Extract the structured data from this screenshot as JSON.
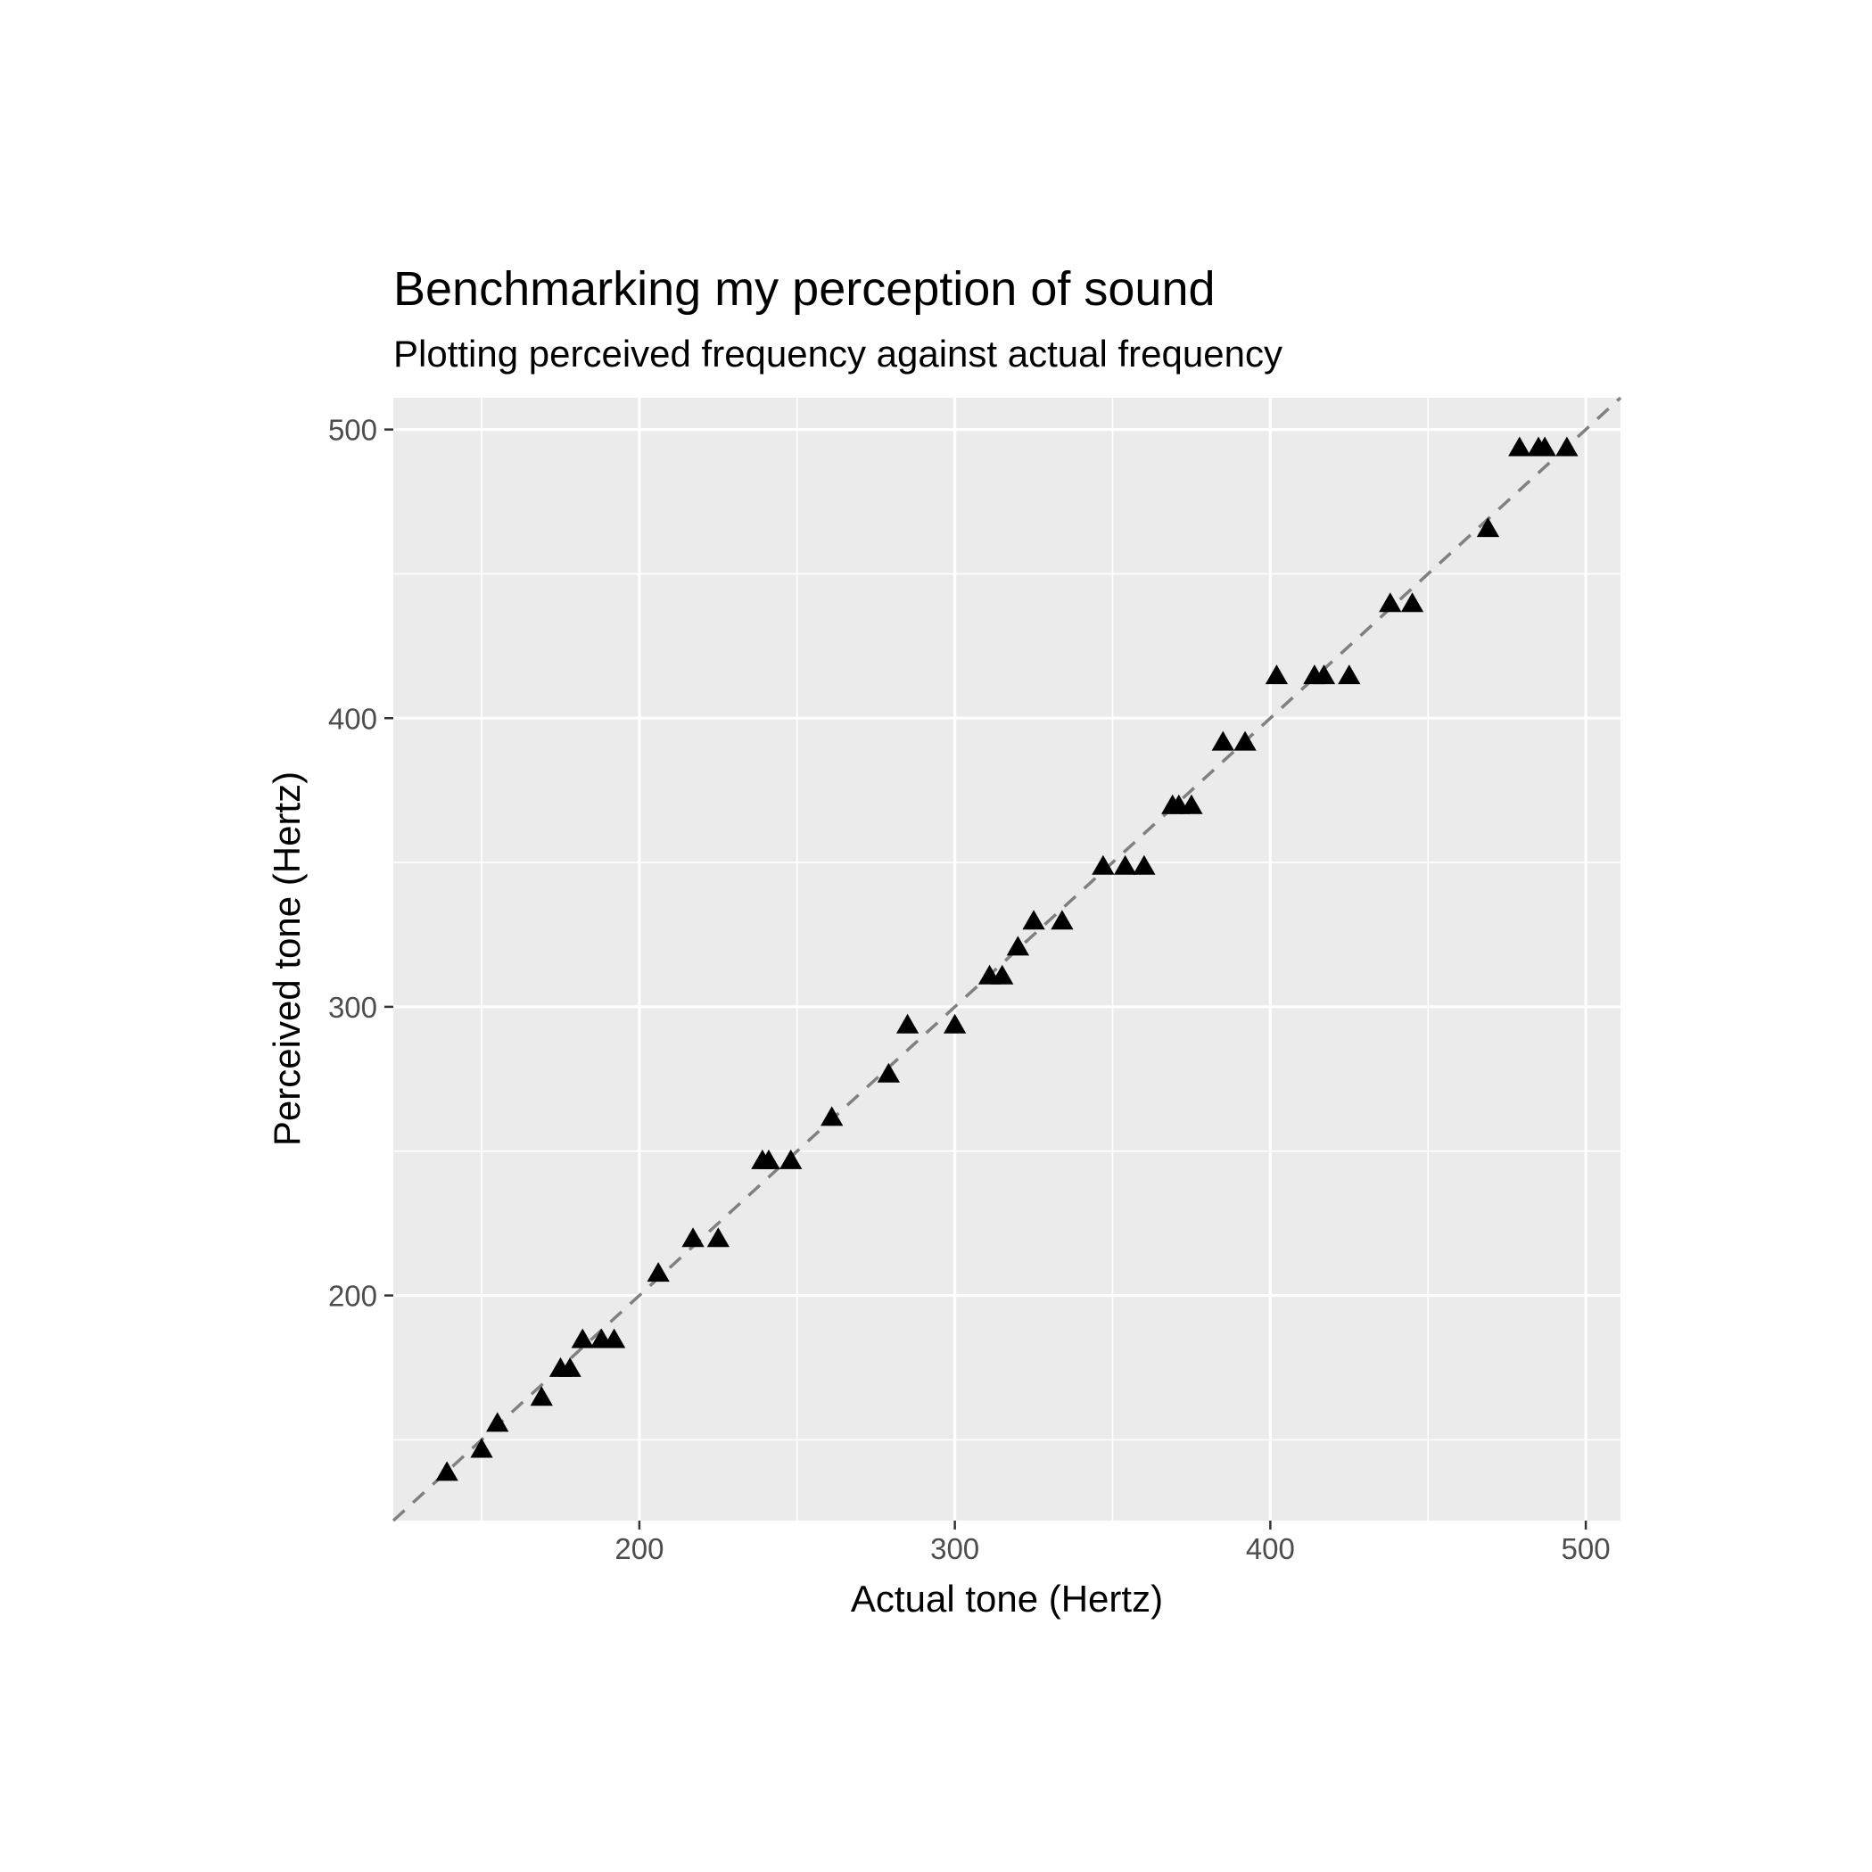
{
  "chart_data": {
    "type": "scatter",
    "title": "Benchmarking my perception of sound",
    "subtitle": "Plotting perceived frequency against actual frequency",
    "xlabel": "Actual tone (Hertz)",
    "ylabel": "Perceived tone (Hertz)",
    "xlim": [
      122,
      511
    ],
    "ylim": [
      122,
      511
    ],
    "x_ticks": [
      200,
      300,
      400,
      500
    ],
    "y_ticks": [
      200,
      300,
      400,
      500
    ],
    "x_minor": [
      150,
      250,
      350,
      450
    ],
    "y_minor": [
      150,
      250,
      350,
      450
    ],
    "grid": true,
    "reference_line": {
      "slope": 1,
      "intercept": 0,
      "style": "dashed",
      "color": "#808080"
    },
    "marker": {
      "shape": "triangle",
      "color": "#000000"
    },
    "points": [
      {
        "x": 139,
        "y": 139
      },
      {
        "x": 150,
        "y": 147
      },
      {
        "x": 155,
        "y": 156
      },
      {
        "x": 169,
        "y": 165
      },
      {
        "x": 175,
        "y": 175
      },
      {
        "x": 178,
        "y": 175
      },
      {
        "x": 182,
        "y": 185
      },
      {
        "x": 188,
        "y": 185
      },
      {
        "x": 192,
        "y": 185
      },
      {
        "x": 206,
        "y": 208
      },
      {
        "x": 217,
        "y": 220
      },
      {
        "x": 225,
        "y": 220
      },
      {
        "x": 239,
        "y": 247
      },
      {
        "x": 241,
        "y": 247
      },
      {
        "x": 248,
        "y": 247
      },
      {
        "x": 261,
        "y": 262
      },
      {
        "x": 279,
        "y": 277
      },
      {
        "x": 285,
        "y": 294
      },
      {
        "x": 300,
        "y": 294
      },
      {
        "x": 311,
        "y": 311
      },
      {
        "x": 315,
        "y": 311
      },
      {
        "x": 320,
        "y": 321
      },
      {
        "x": 325,
        "y": 330
      },
      {
        "x": 334,
        "y": 330
      },
      {
        "x": 347,
        "y": 349
      },
      {
        "x": 354,
        "y": 349
      },
      {
        "x": 360,
        "y": 349
      },
      {
        "x": 369,
        "y": 370
      },
      {
        "x": 371,
        "y": 370
      },
      {
        "x": 375,
        "y": 370
      },
      {
        "x": 385,
        "y": 392
      },
      {
        "x": 392,
        "y": 392
      },
      {
        "x": 402,
        "y": 415
      },
      {
        "x": 414,
        "y": 415
      },
      {
        "x": 417,
        "y": 415
      },
      {
        "x": 425,
        "y": 415
      },
      {
        "x": 438,
        "y": 440
      },
      {
        "x": 445,
        "y": 440
      },
      {
        "x": 469,
        "y": 466
      },
      {
        "x": 479,
        "y": 494
      },
      {
        "x": 485,
        "y": 494
      },
      {
        "x": 487,
        "y": 494
      },
      {
        "x": 494,
        "y": 494
      }
    ],
    "colors": {
      "panel": "#ebebeb",
      "grid": "#ffffff",
      "tick": "#333333"
    }
  }
}
